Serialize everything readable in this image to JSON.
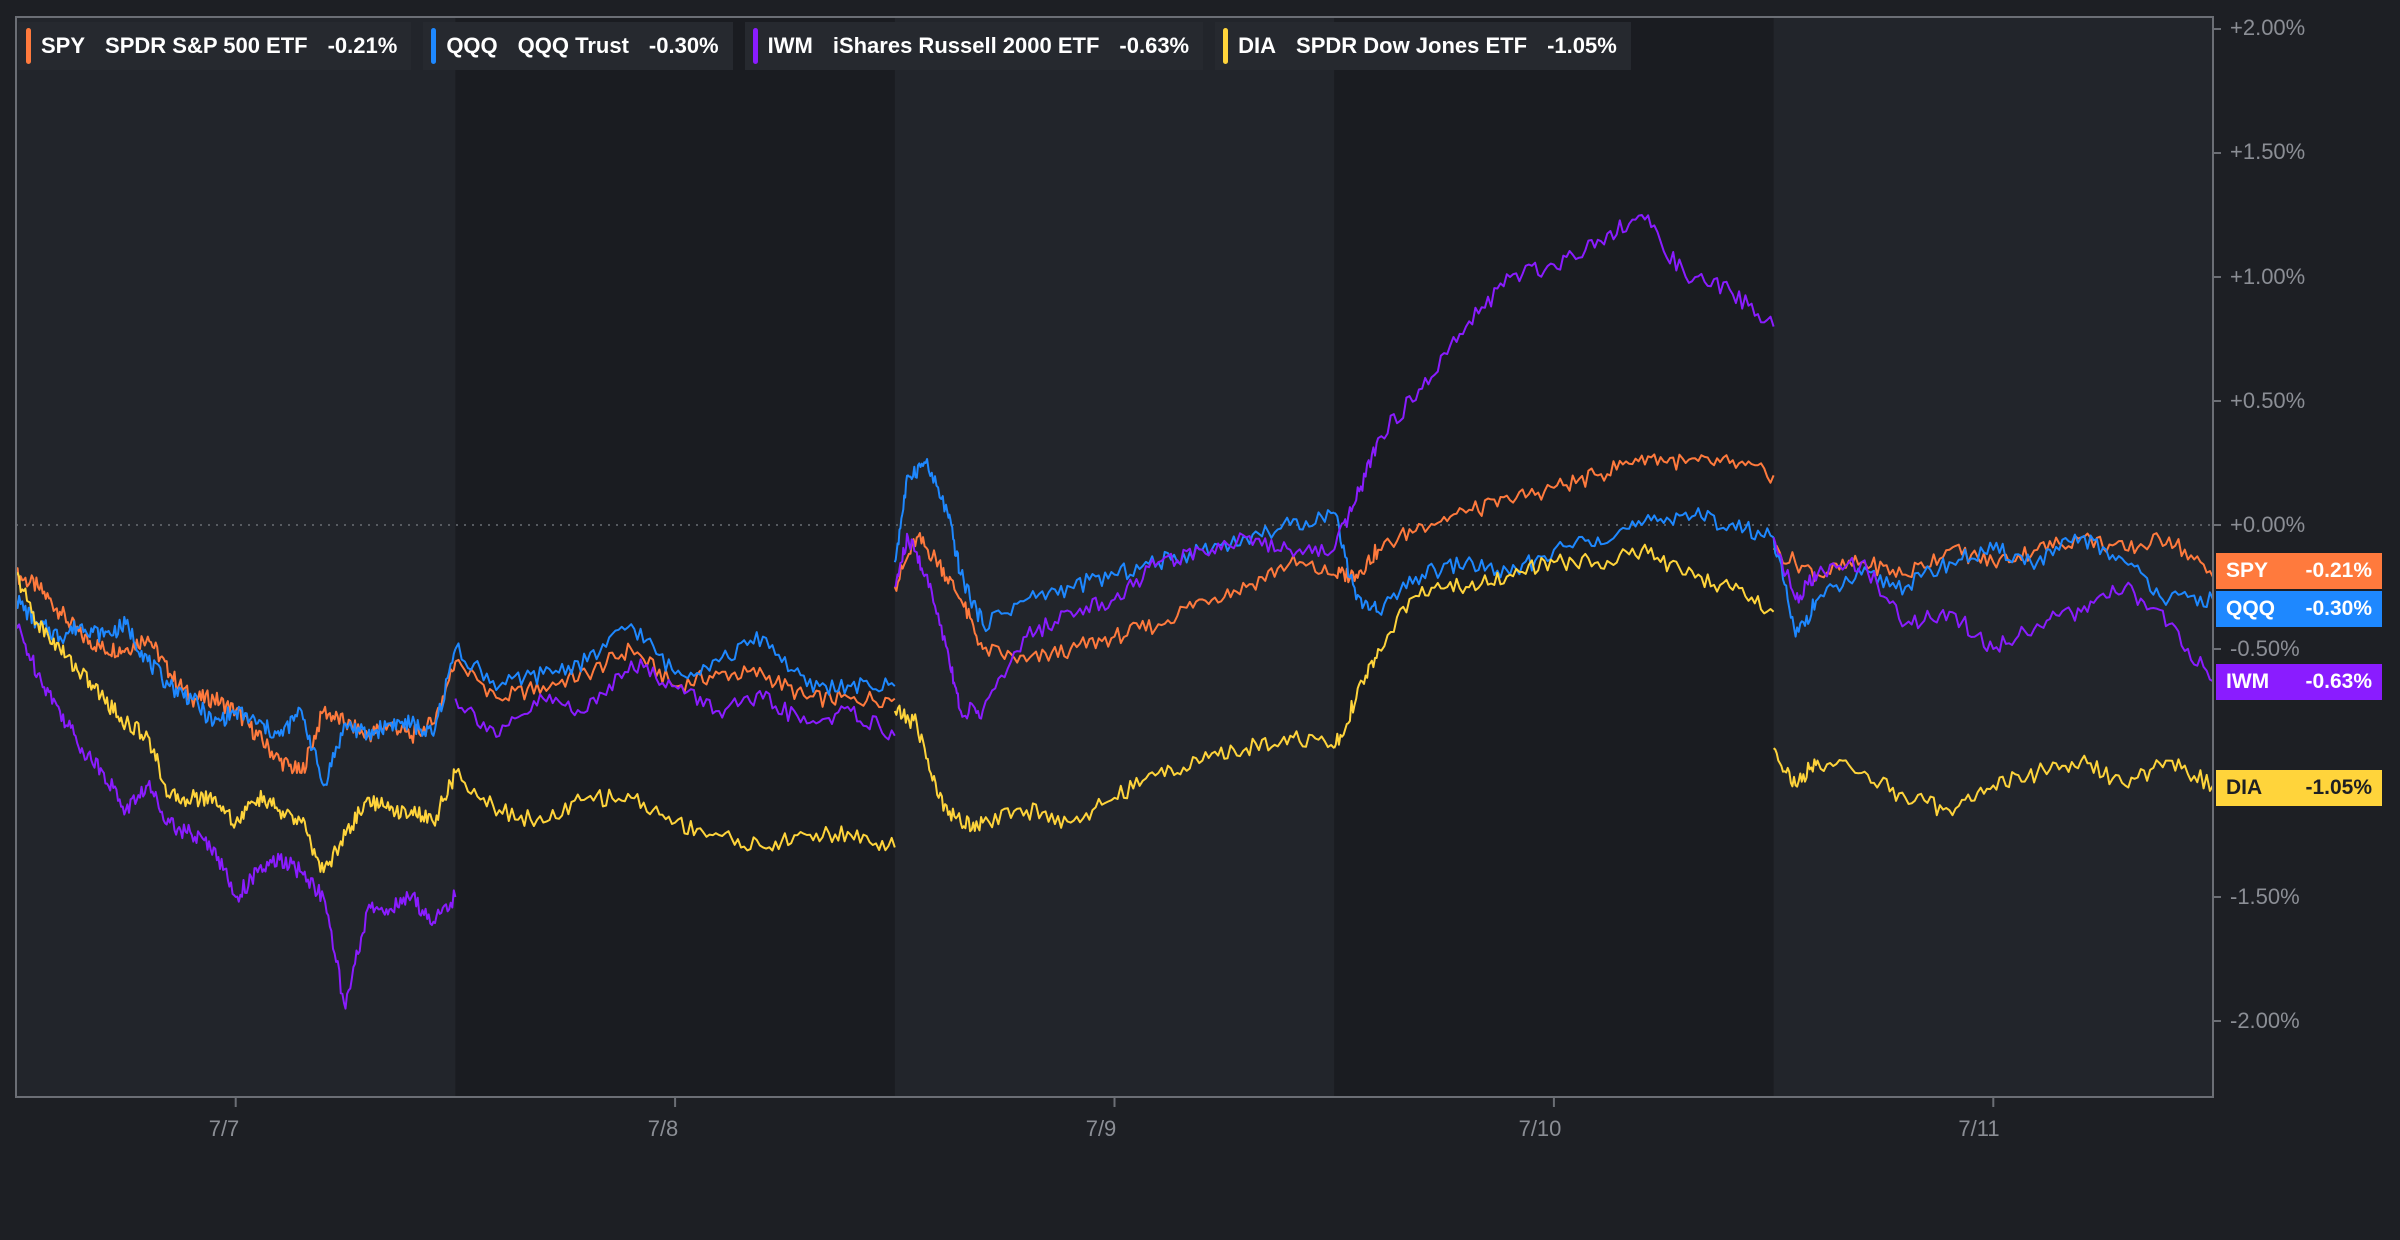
{
  "legend": [
    {
      "symbol": "SPY",
      "name": "SPDR S&P 500 ETF",
      "change": "-0.21%",
      "color": "#ff7a3d"
    },
    {
      "symbol": "QQQ",
      "name": "QQQ Trust",
      "change": "-0.30%",
      "color": "#1e88ff"
    },
    {
      "symbol": "IWM",
      "name": "iShares Russell 2000 ETF",
      "change": "-0.63%",
      "color": "#8a1cff"
    },
    {
      "symbol": "DIA",
      "name": "SPDR Dow Jones ETF",
      "change": "-1.05%",
      "color": "#ffd43b"
    }
  ],
  "colors": {
    "background": "#1d1f24",
    "panel": "#22252b",
    "session_band": "#1a1c21",
    "axis_text": "#8b8e95",
    "zero_line": "#6b6e75",
    "border": "#6b6e75"
  },
  "chart_data": {
    "type": "line",
    "title": "",
    "xlabel": "",
    "ylabel": "",
    "x_ticks": [
      "7/7",
      "7/8",
      "7/9",
      "7/10",
      "7/11"
    ],
    "y_ticks": [
      "+2.00%",
      "+1.50%",
      "+1.00%",
      "+0.50%",
      "+0.00%",
      "-0.50%",
      "-1.50%",
      "-2.00%"
    ],
    "y_tick_values": [
      2.0,
      1.5,
      1.0,
      0.5,
      0.0,
      -0.5,
      -1.5,
      -2.0
    ],
    "ylim": [
      -2.3,
      2.05
    ],
    "xlim": [
      0,
      5
    ],
    "x_unit": "trading sessions (7/7 = 0.5)",
    "sessions": [
      "7/7",
      "7/8",
      "7/9",
      "7/10",
      "7/11"
    ],
    "grid": false,
    "zero_line": true,
    "legend_position": "top-left",
    "series": [
      {
        "name": "SPY",
        "color": "#ff7a3d",
        "end_label": "-0.21%",
        "segments": [
          {
            "x": [
              0.0,
              0.05,
              0.1,
              0.15,
              0.2,
              0.25,
              0.3,
              0.35,
              0.4,
              0.45,
              0.5,
              0.55,
              0.6,
              0.65,
              0.7,
              0.75,
              0.8,
              0.85,
              0.9,
              0.95,
              1.0
            ],
            "y": [
              -0.2,
              -0.25,
              -0.35,
              -0.45,
              -0.5,
              -0.5,
              -0.45,
              -0.6,
              -0.7,
              -0.7,
              -0.75,
              -0.85,
              -0.95,
              -1.0,
              -0.75,
              -0.8,
              -0.85,
              -0.8,
              -0.85,
              -0.8,
              -0.55
            ]
          },
          {
            "x": [
              1.0,
              1.1,
              1.2,
              1.3,
              1.4,
              1.5,
              1.6,
              1.7,
              1.8,
              1.9,
              2.0
            ],
            "y": [
              -0.55,
              -0.7,
              -0.65,
              -0.6,
              -0.5,
              -0.65,
              -0.6,
              -0.6,
              -0.7,
              -0.7,
              -0.7
            ]
          },
          {
            "x": [
              2.0,
              2.05,
              2.1,
              2.15,
              2.2,
              2.3,
              2.4,
              2.5,
              2.6,
              2.7,
              2.8,
              2.9,
              3.0
            ],
            "y": [
              -0.25,
              -0.05,
              -0.15,
              -0.3,
              -0.5,
              -0.55,
              -0.5,
              -0.45,
              -0.4,
              -0.3,
              -0.25,
              -0.15,
              -0.2
            ]
          },
          {
            "x": [
              3.0,
              3.05,
              3.1,
              3.2,
              3.3,
              3.4,
              3.5,
              3.6,
              3.7,
              3.8,
              3.9,
              4.0
            ],
            "y": [
              -0.2,
              -0.2,
              -0.1,
              0.0,
              0.05,
              0.1,
              0.15,
              0.2,
              0.28,
              0.25,
              0.25,
              0.2
            ]
          },
          {
            "x": [
              4.0,
              4.1,
              4.2,
              4.3,
              4.4,
              4.5,
              4.6,
              4.7,
              4.8,
              4.9,
              5.0
            ],
            "y": [
              -0.1,
              -0.2,
              -0.15,
              -0.2,
              -0.1,
              -0.15,
              -0.1,
              -0.05,
              -0.1,
              -0.05,
              -0.21
            ]
          }
        ]
      },
      {
        "name": "QQQ",
        "color": "#1e88ff",
        "end_label": "-0.30%",
        "segments": [
          {
            "x": [
              0.0,
              0.05,
              0.1,
              0.15,
              0.2,
              0.25,
              0.3,
              0.35,
              0.4,
              0.45,
              0.5,
              0.55,
              0.6,
              0.65,
              0.7,
              0.75,
              0.8,
              0.85,
              0.9,
              0.95,
              1.0
            ],
            "y": [
              -0.3,
              -0.4,
              -0.45,
              -0.4,
              -0.45,
              -0.4,
              -0.55,
              -0.65,
              -0.7,
              -0.8,
              -0.75,
              -0.8,
              -0.85,
              -0.75,
              -1.05,
              -0.8,
              -0.85,
              -0.8,
              -0.8,
              -0.85,
              -0.5
            ]
          },
          {
            "x": [
              1.0,
              1.1,
              1.2,
              1.3,
              1.4,
              1.5,
              1.6,
              1.7,
              1.8,
              1.9,
              2.0
            ],
            "y": [
              -0.5,
              -0.65,
              -0.6,
              -0.55,
              -0.4,
              -0.6,
              -0.55,
              -0.45,
              -0.65,
              -0.65,
              -0.65
            ]
          },
          {
            "x": [
              2.0,
              2.03,
              2.07,
              2.12,
              2.15,
              2.2,
              2.3,
              2.4,
              2.5,
              2.6,
              2.7,
              2.8,
              2.9,
              3.0
            ],
            "y": [
              -0.15,
              0.2,
              0.25,
              0.05,
              -0.2,
              -0.4,
              -0.3,
              -0.25,
              -0.2,
              -0.15,
              -0.1,
              -0.05,
              0.0,
              0.05
            ]
          },
          {
            "x": [
              3.0,
              3.05,
              3.1,
              3.2,
              3.3,
              3.4,
              3.5,
              3.6,
              3.7,
              3.8,
              3.9,
              4.0
            ],
            "y": [
              0.05,
              -0.3,
              -0.35,
              -0.2,
              -0.15,
              -0.2,
              -0.1,
              -0.05,
              0.0,
              0.05,
              0.0,
              -0.05
            ]
          },
          {
            "x": [
              4.0,
              4.05,
              4.1,
              4.2,
              4.3,
              4.4,
              4.5,
              4.6,
              4.7,
              4.8,
              4.9,
              5.0
            ],
            "y": [
              -0.05,
              -0.45,
              -0.3,
              -0.2,
              -0.25,
              -0.15,
              -0.1,
              -0.15,
              -0.05,
              -0.15,
              -0.3,
              -0.3
            ]
          }
        ]
      },
      {
        "name": "IWM",
        "color": "#8a1cff",
        "end_label": "-0.63%",
        "segments": [
          {
            "x": [
              0.0,
              0.05,
              0.1,
              0.15,
              0.2,
              0.25,
              0.3,
              0.35,
              0.4,
              0.45,
              0.5,
              0.55,
              0.6,
              0.65,
              0.7,
              0.75,
              0.8,
              0.85,
              0.9,
              0.95,
              1.0
            ],
            "y": [
              -0.4,
              -0.6,
              -0.75,
              -0.9,
              -1.0,
              -1.15,
              -1.05,
              -1.2,
              -1.25,
              -1.3,
              -1.5,
              -1.4,
              -1.35,
              -1.4,
              -1.5,
              -1.95,
              -1.55,
              -1.55,
              -1.5,
              -1.6,
              -1.5
            ]
          },
          {
            "x": [
              1.0,
              1.1,
              1.2,
              1.3,
              1.4,
              1.5,
              1.6,
              1.7,
              1.8,
              1.9,
              2.0
            ],
            "y": [
              -0.7,
              -0.85,
              -0.7,
              -0.75,
              -0.55,
              -0.65,
              -0.75,
              -0.7,
              -0.8,
              -0.75,
              -0.85
            ]
          },
          {
            "x": [
              2.0,
              2.03,
              2.07,
              2.12,
              2.15,
              2.2,
              2.3,
              2.4,
              2.5,
              2.6,
              2.7,
              2.8,
              2.9,
              3.0
            ],
            "y": [
              -0.25,
              -0.05,
              -0.2,
              -0.5,
              -0.75,
              -0.75,
              -0.45,
              -0.35,
              -0.3,
              -0.15,
              -0.1,
              -0.05,
              -0.1,
              -0.1
            ]
          },
          {
            "x": [
              3.0,
              3.05,
              3.1,
              3.2,
              3.3,
              3.4,
              3.5,
              3.6,
              3.7,
              3.8,
              3.9,
              4.0
            ],
            "y": [
              -0.1,
              0.1,
              0.35,
              0.55,
              0.8,
              1.0,
              1.05,
              1.15,
              1.25,
              1.0,
              0.95,
              0.8
            ]
          },
          {
            "x": [
              4.0,
              4.05,
              4.1,
              4.2,
              4.3,
              4.4,
              4.5,
              4.6,
              4.7,
              4.8,
              4.9,
              5.0
            ],
            "y": [
              -0.05,
              -0.3,
              -0.2,
              -0.15,
              -0.4,
              -0.35,
              -0.5,
              -0.4,
              -0.35,
              -0.25,
              -0.4,
              -0.63
            ]
          }
        ]
      },
      {
        "name": "DIA",
        "color": "#ffd43b",
        "end_label": "-1.05%",
        "segments": [
          {
            "x": [
              0.0,
              0.05,
              0.1,
              0.15,
              0.2,
              0.25,
              0.3,
              0.35,
              0.4,
              0.45,
              0.5,
              0.55,
              0.6,
              0.65,
              0.7,
              0.75,
              0.8,
              0.85,
              0.9,
              0.95,
              1.0
            ],
            "y": [
              -0.2,
              -0.4,
              -0.5,
              -0.6,
              -0.7,
              -0.8,
              -0.85,
              -1.1,
              -1.1,
              -1.1,
              -1.2,
              -1.1,
              -1.15,
              -1.2,
              -1.4,
              -1.25,
              -1.1,
              -1.15,
              -1.15,
              -1.2,
              -1.0
            ]
          },
          {
            "x": [
              1.0,
              1.1,
              1.2,
              1.3,
              1.4,
              1.5,
              1.6,
              1.7,
              1.8,
              1.9,
              2.0
            ],
            "y": [
              -1.0,
              -1.15,
              -1.2,
              -1.1,
              -1.1,
              -1.2,
              -1.25,
              -1.3,
              -1.25,
              -1.25,
              -1.3
            ]
          },
          {
            "x": [
              2.0,
              2.05,
              2.1,
              2.15,
              2.2,
              2.3,
              2.4,
              2.5,
              2.6,
              2.7,
              2.8,
              2.9,
              3.0
            ],
            "y": [
              -0.75,
              -0.8,
              -1.1,
              -1.2,
              -1.2,
              -1.15,
              -1.2,
              -1.1,
              -1.0,
              -0.95,
              -0.9,
              -0.85,
              -0.9
            ]
          },
          {
            "x": [
              3.0,
              3.05,
              3.1,
              3.2,
              3.3,
              3.4,
              3.5,
              3.6,
              3.7,
              3.8,
              3.9,
              4.0
            ],
            "y": [
              -0.9,
              -0.7,
              -0.5,
              -0.25,
              -0.25,
              -0.2,
              -0.15,
              -0.15,
              -0.1,
              -0.2,
              -0.25,
              -0.35
            ]
          },
          {
            "x": [
              4.0,
              4.05,
              4.1,
              4.2,
              4.3,
              4.4,
              4.5,
              4.6,
              4.7,
              4.8,
              4.9,
              5.0
            ],
            "y": [
              -0.9,
              -1.05,
              -0.95,
              -1.0,
              -1.1,
              -1.15,
              -1.05,
              -1.0,
              -0.95,
              -1.05,
              -0.95,
              -1.05
            ]
          }
        ]
      }
    ]
  }
}
